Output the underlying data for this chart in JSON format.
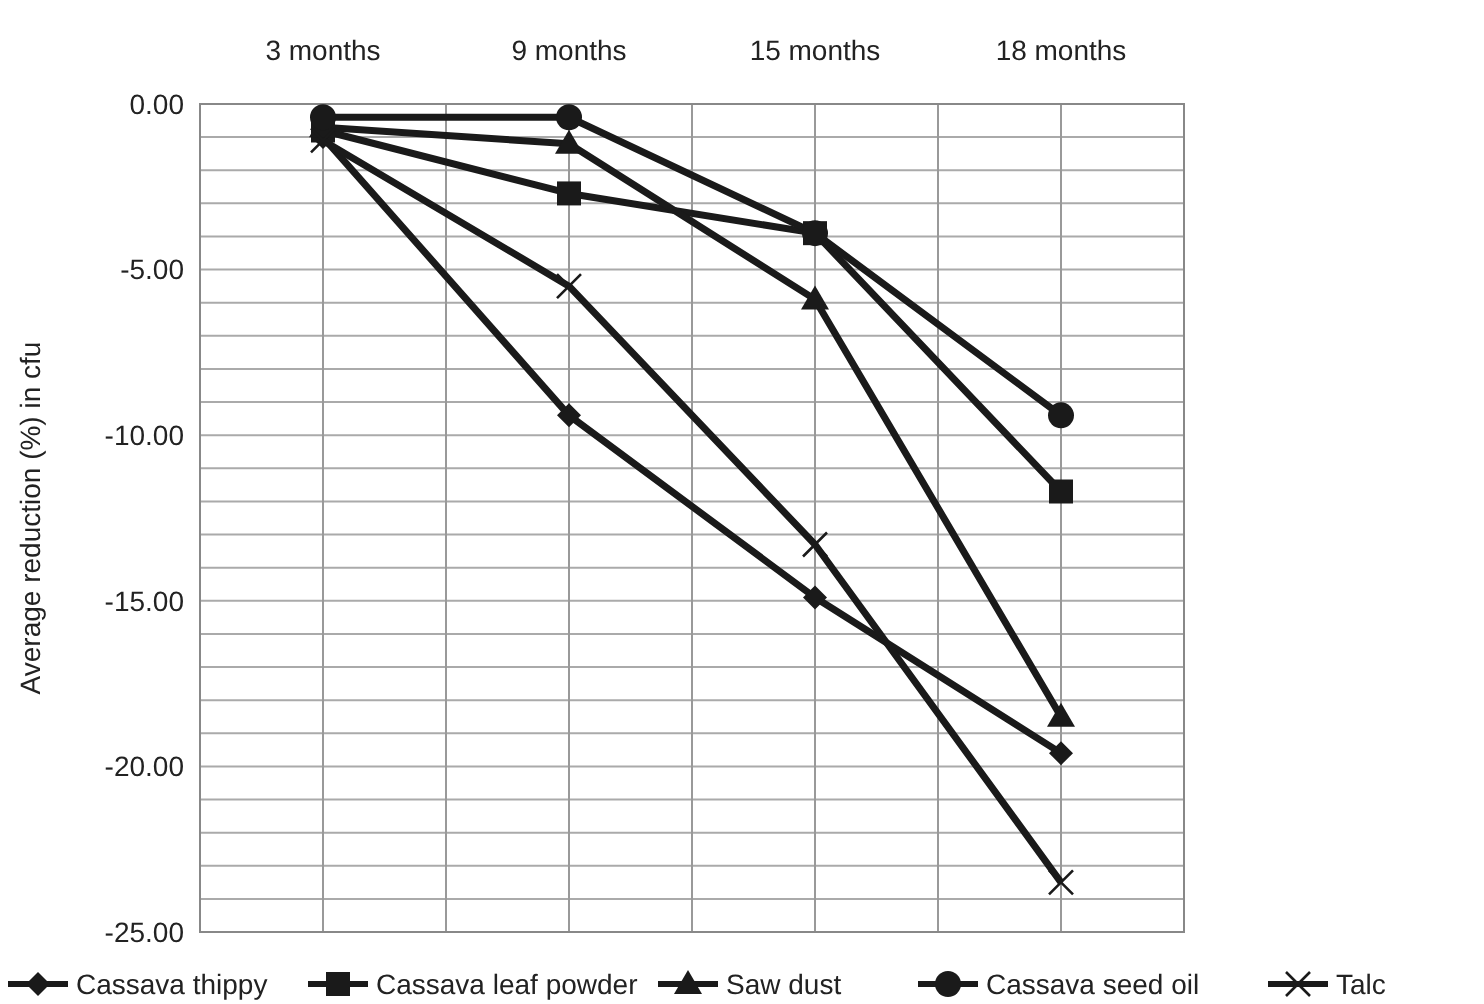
{
  "chart_data": {
    "type": "line",
    "ylabel": "Average reduction (%) in cfu",
    "categories": [
      "3 months",
      "9 months",
      "15 months",
      "18 months"
    ],
    "ylim": [
      -25,
      0
    ],
    "yticks": [
      {
        "value": 0,
        "label": "0.00"
      },
      {
        "value": -5,
        "label": "-5.00"
      },
      {
        "value": -10,
        "label": "-10.00"
      },
      {
        "value": -15,
        "label": "-15.00"
      },
      {
        "value": -20,
        "label": "-20.00"
      },
      {
        "value": -25,
        "label": "-25.00"
      }
    ],
    "grid": true,
    "legend": "bottom",
    "line_style": "solid",
    "series": [
      {
        "name": "Cassava thippy",
        "color": "#1a1a1a",
        "marker": "diamond",
        "values": [
          -1.0,
          -9.4,
          -14.9,
          -19.6
        ]
      },
      {
        "name": "Cassava leaf powder",
        "color": "#1a1a1a",
        "marker": "square",
        "values": [
          -0.8,
          -2.7,
          -3.9,
          -11.7
        ]
      },
      {
        "name": "Saw dust",
        "color": "#1a1a1a",
        "marker": "triangle",
        "values": [
          -0.7,
          -1.2,
          -5.9,
          -18.5
        ]
      },
      {
        "name": "Cassava seed oil",
        "color": "#1a1a1a",
        "marker": "circle",
        "values": [
          -0.4,
          -0.4,
          -3.9,
          -9.4
        ]
      },
      {
        "name": "Talc",
        "color": "#1a1a1a",
        "marker": "cross",
        "values": [
          -1.1,
          -5.5,
          -13.3,
          -23.5
        ]
      }
    ]
  }
}
